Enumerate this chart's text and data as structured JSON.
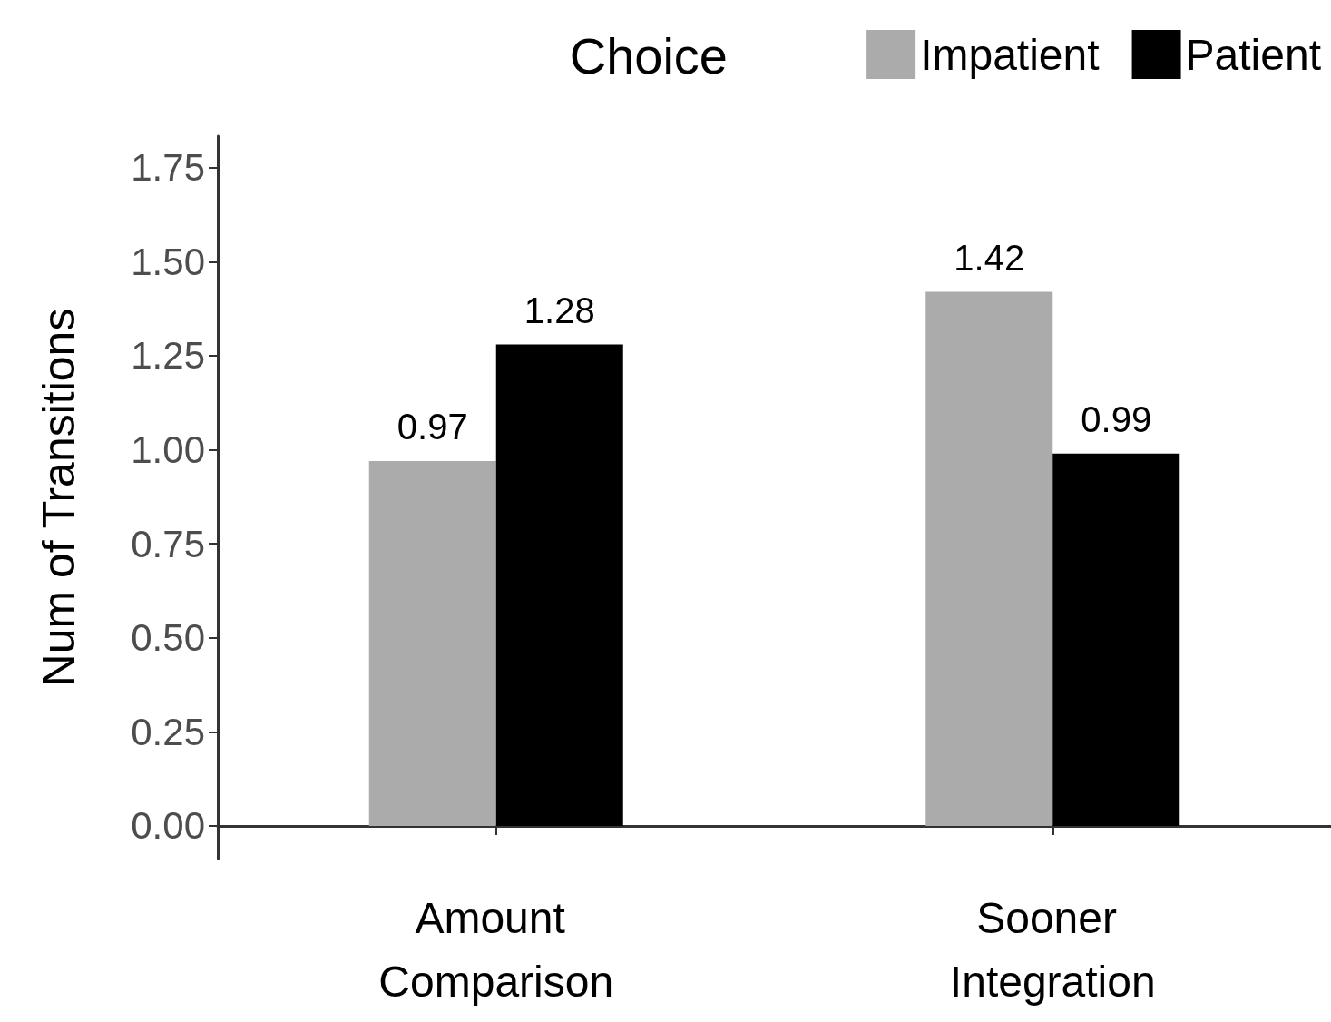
{
  "chart_data": {
    "type": "bar",
    "ylabel": "Num of Transitions",
    "legend_title": "Choice",
    "categories": [
      "Amount Comparison",
      "Sooner Integration"
    ],
    "series": [
      {
        "name": "Impatient",
        "color": "#ababab",
        "values": [
          0.97,
          1.42
        ]
      },
      {
        "name": "Patient",
        "color": "#000000",
        "values": [
          1.28,
          0.99
        ]
      }
    ],
    "ylim": [
      -0.087,
      1.834
    ],
    "yticks": [
      {
        "value": 0,
        "label": "0.00"
      },
      {
        "value": 0.25,
        "label": "0.25"
      },
      {
        "value": 0.5,
        "label": "0.50"
      },
      {
        "value": 0.75,
        "label": "0.75"
      },
      {
        "value": 1,
        "label": "1.00"
      },
      {
        "value": 1.25,
        "label": "1.25"
      },
      {
        "value": 1.5,
        "label": "1.50"
      },
      {
        "value": 1.75,
        "label": "1.75"
      }
    ],
    "grid": false,
    "legend": "top right",
    "data_labels": true
  }
}
